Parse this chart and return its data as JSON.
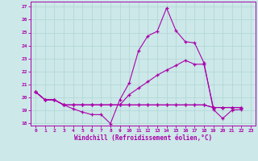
{
  "xlabel": "Windchill (Refroidissement éolien,°C)",
  "xlim": [
    -0.5,
    23.5
  ],
  "ylim": [
    17.8,
    27.4
  ],
  "yticks": [
    18,
    19,
    20,
    21,
    22,
    23,
    24,
    25,
    26,
    27
  ],
  "xticks": [
    0,
    1,
    2,
    3,
    4,
    5,
    6,
    7,
    8,
    9,
    10,
    11,
    12,
    13,
    14,
    15,
    16,
    17,
    18,
    19,
    20,
    21,
    22,
    23
  ],
  "bg_color": "#cce8e8",
  "grid_color": "#b0d4d4",
  "line_color": "#aa00aa",
  "series1": [
    20.4,
    19.8,
    19.8,
    19.4,
    19.1,
    18.85,
    18.65,
    18.65,
    17.95,
    19.8,
    21.1,
    23.6,
    24.75,
    25.1,
    26.9,
    25.15,
    24.3,
    24.2,
    22.65,
    19.05,
    18.35,
    19.0,
    19.05
  ],
  "series2": [
    20.4,
    19.8,
    19.8,
    19.4,
    19.4,
    19.4,
    19.4,
    19.4,
    19.4,
    19.4,
    20.2,
    20.7,
    21.2,
    21.7,
    22.1,
    22.45,
    22.85,
    22.55,
    22.55,
    19.2,
    19.2,
    19.2,
    19.2
  ],
  "series3": [
    20.4,
    19.8,
    19.8,
    19.4,
    19.4,
    19.4,
    19.4,
    19.4,
    19.4,
    19.4,
    19.4,
    19.4,
    19.4,
    19.4,
    19.4,
    19.4,
    19.4,
    19.4,
    19.4,
    19.2,
    19.2,
    19.2,
    19.2
  ],
  "series4": [
    20.4,
    19.8,
    19.8,
    19.4,
    19.4,
    19.4,
    19.4,
    19.4,
    19.4,
    19.4,
    19.4,
    19.4,
    19.4,
    19.4,
    19.4,
    19.4,
    19.4,
    19.4,
    19.4,
    19.2,
    19.2,
    19.2,
    19.2
  ]
}
